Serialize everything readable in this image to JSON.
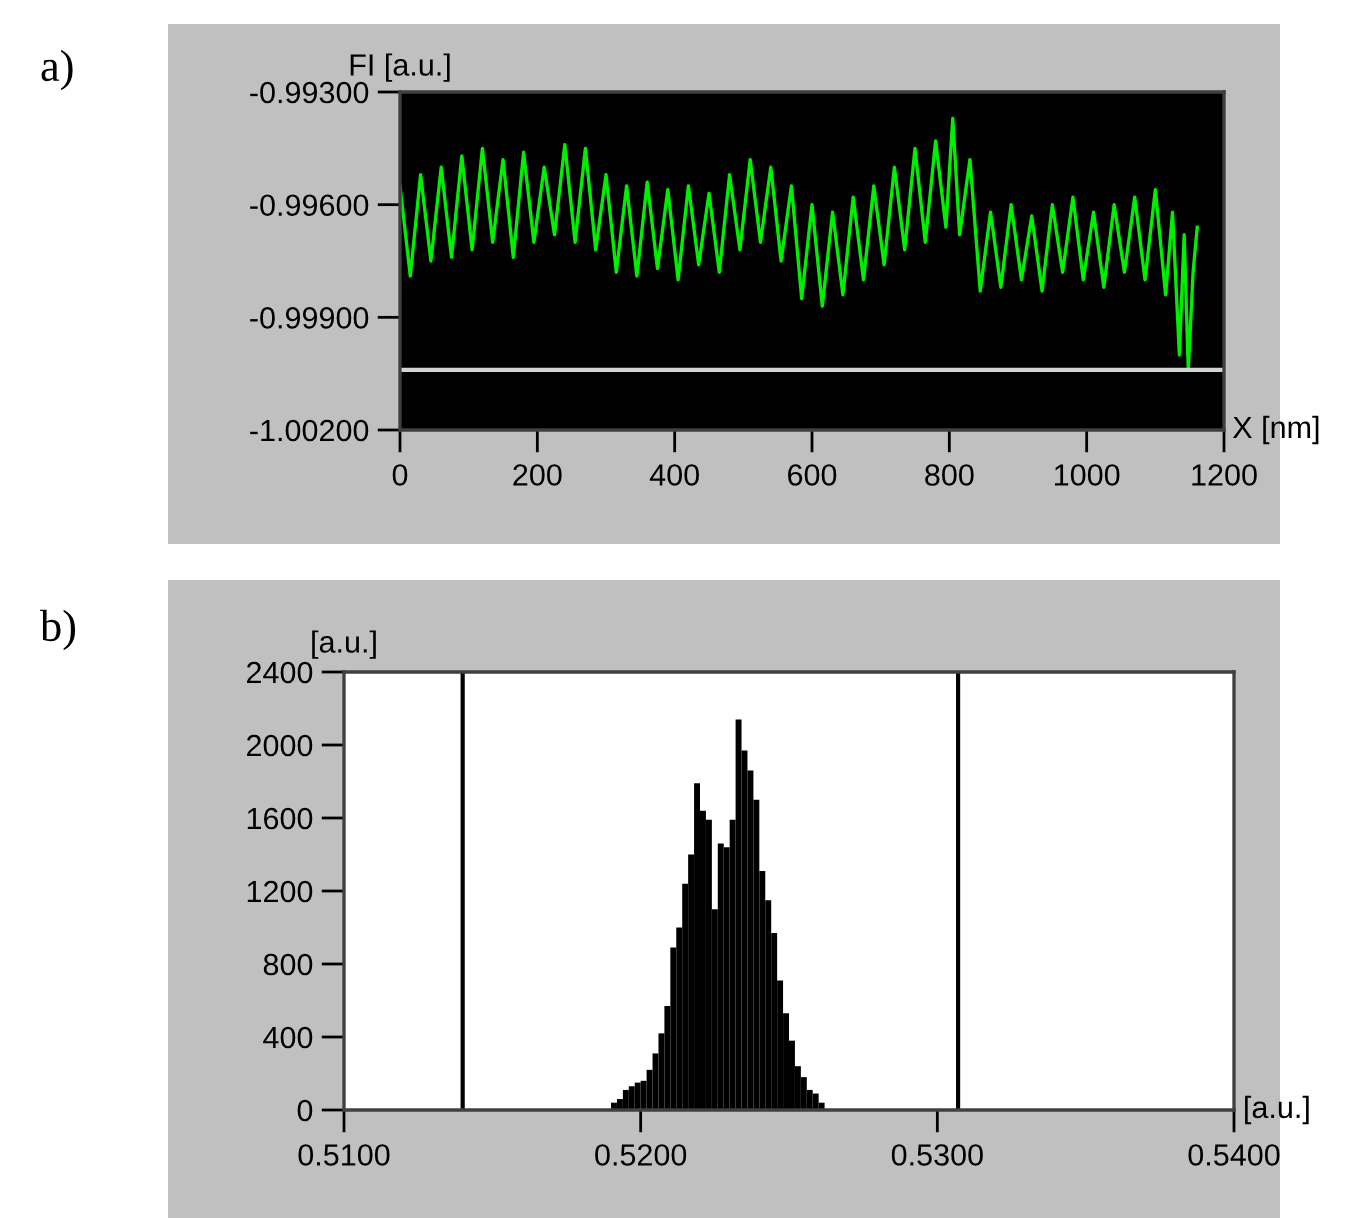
{
  "chart_data": [
    {
      "type": "line",
      "title": "a)",
      "ylabel": "FI [a.u.]",
      "xlabel": "X [nm]",
      "xlim": [
        0,
        1200
      ],
      "xticks": [
        0,
        200,
        400,
        600,
        800,
        1000,
        1200
      ],
      "ylim": [
        -1.002,
        -0.993
      ],
      "yticks": [
        {
          "value": -1.002,
          "label": "-1.00200"
        },
        {
          "value": -0.999,
          "label": "-0.99900"
        },
        {
          "value": -0.996,
          "label": "-0.99600"
        },
        {
          "value": -0.993,
          "label": "-0.99300"
        }
      ],
      "grid": false,
      "legend": false,
      "ref_lines": [
        {
          "axis": "y",
          "value": -1.0004,
          "color": "#d4d4d4"
        }
      ],
      "series": [
        {
          "color": "#00ee00",
          "x": [
            0,
            15,
            30,
            45,
            60,
            75,
            90,
            105,
            120,
            135,
            150,
            165,
            180,
            195,
            210,
            225,
            240,
            255,
            270,
            285,
            300,
            315,
            330,
            345,
            360,
            375,
            390,
            405,
            420,
            435,
            450,
            465,
            480,
            495,
            510,
            525,
            540,
            555,
            570,
            585,
            600,
            615,
            630,
            645,
            660,
            675,
            690,
            705,
            720,
            735,
            750,
            765,
            780,
            795,
            805,
            815,
            830,
            845,
            860,
            875,
            890,
            905,
            920,
            935,
            950,
            965,
            980,
            995,
            1010,
            1025,
            1040,
            1055,
            1070,
            1085,
            1100,
            1115,
            1125,
            1135,
            1142,
            1148,
            1155,
            1161
          ],
          "values": [
            -0.9955,
            -0.9979,
            -0.9952,
            -0.9975,
            -0.995,
            -0.9974,
            -0.9947,
            -0.9972,
            -0.9945,
            -0.997,
            -0.9948,
            -0.9974,
            -0.9946,
            -0.997,
            -0.995,
            -0.9968,
            -0.9944,
            -0.997,
            -0.9945,
            -0.9972,
            -0.9952,
            -0.9978,
            -0.9955,
            -0.9979,
            -0.9954,
            -0.9977,
            -0.9956,
            -0.998,
            -0.9955,
            -0.9976,
            -0.9957,
            -0.9978,
            -0.9952,
            -0.9972,
            -0.9948,
            -0.997,
            -0.995,
            -0.9975,
            -0.9955,
            -0.9985,
            -0.996,
            -0.9987,
            -0.9962,
            -0.9984,
            -0.9958,
            -0.998,
            -0.9955,
            -0.9976,
            -0.995,
            -0.9972,
            -0.9945,
            -0.997,
            -0.9943,
            -0.9966,
            -0.9937,
            -0.9968,
            -0.9948,
            -0.9983,
            -0.9962,
            -0.9982,
            -0.996,
            -0.998,
            -0.9963,
            -0.9983,
            -0.996,
            -0.9978,
            -0.9958,
            -0.998,
            -0.9962,
            -0.9982,
            -0.996,
            -0.9978,
            -0.9958,
            -0.998,
            -0.9956,
            -0.9984,
            -0.9962,
            -1.0,
            -0.9968,
            -1.0004,
            -0.9978,
            -0.9966
          ]
        }
      ]
    },
    {
      "type": "histogram",
      "title": "b)",
      "ylabel": "[a.u.]",
      "xlabel": "[a.u.]",
      "color": "#000000",
      "xlim": [
        0.51,
        0.54
      ],
      "xticks": [
        {
          "value": 0.51,
          "label": "0.5100"
        },
        {
          "value": 0.52,
          "label": "0.5200"
        },
        {
          "value": 0.53,
          "label": "0.5300"
        },
        {
          "value": 0.54,
          "label": "0.5400"
        }
      ],
      "ylim": [
        0,
        2400
      ],
      "yticks": [
        0,
        400,
        800,
        1200,
        1600,
        2000,
        2400
      ],
      "grid": false,
      "legend": false,
      "ref_lines": [
        {
          "axis": "x",
          "value": 0.514,
          "color": "#000000"
        },
        {
          "axis": "x",
          "value": 0.5307,
          "color": "#000000"
        }
      ],
      "bins": [
        0.519,
        0.5192,
        0.5194,
        0.5196,
        0.5198,
        0.52,
        0.5202,
        0.5204,
        0.5206,
        0.5208,
        0.521,
        0.5212,
        0.5214,
        0.5216,
        0.5218,
        0.522,
        0.5222,
        0.5224,
        0.5226,
        0.5228,
        0.523,
        0.5232,
        0.5234,
        0.5236,
        0.5238,
        0.524,
        0.5242,
        0.5244,
        0.5246,
        0.5248,
        0.525,
        0.5252,
        0.5254,
        0.5256,
        0.5258,
        0.526,
        0.5262
      ],
      "values": [
        40,
        60,
        110,
        130,
        150,
        160,
        220,
        310,
        420,
        570,
        890,
        1000,
        1240,
        1400,
        1790,
        1640,
        1590,
        1100,
        1460,
        1440,
        1590,
        2140,
        1970,
        1860,
        1700,
        1310,
        1150,
        970,
        710,
        530,
        380,
        240,
        180,
        110,
        90,
        40
      ]
    }
  ]
}
